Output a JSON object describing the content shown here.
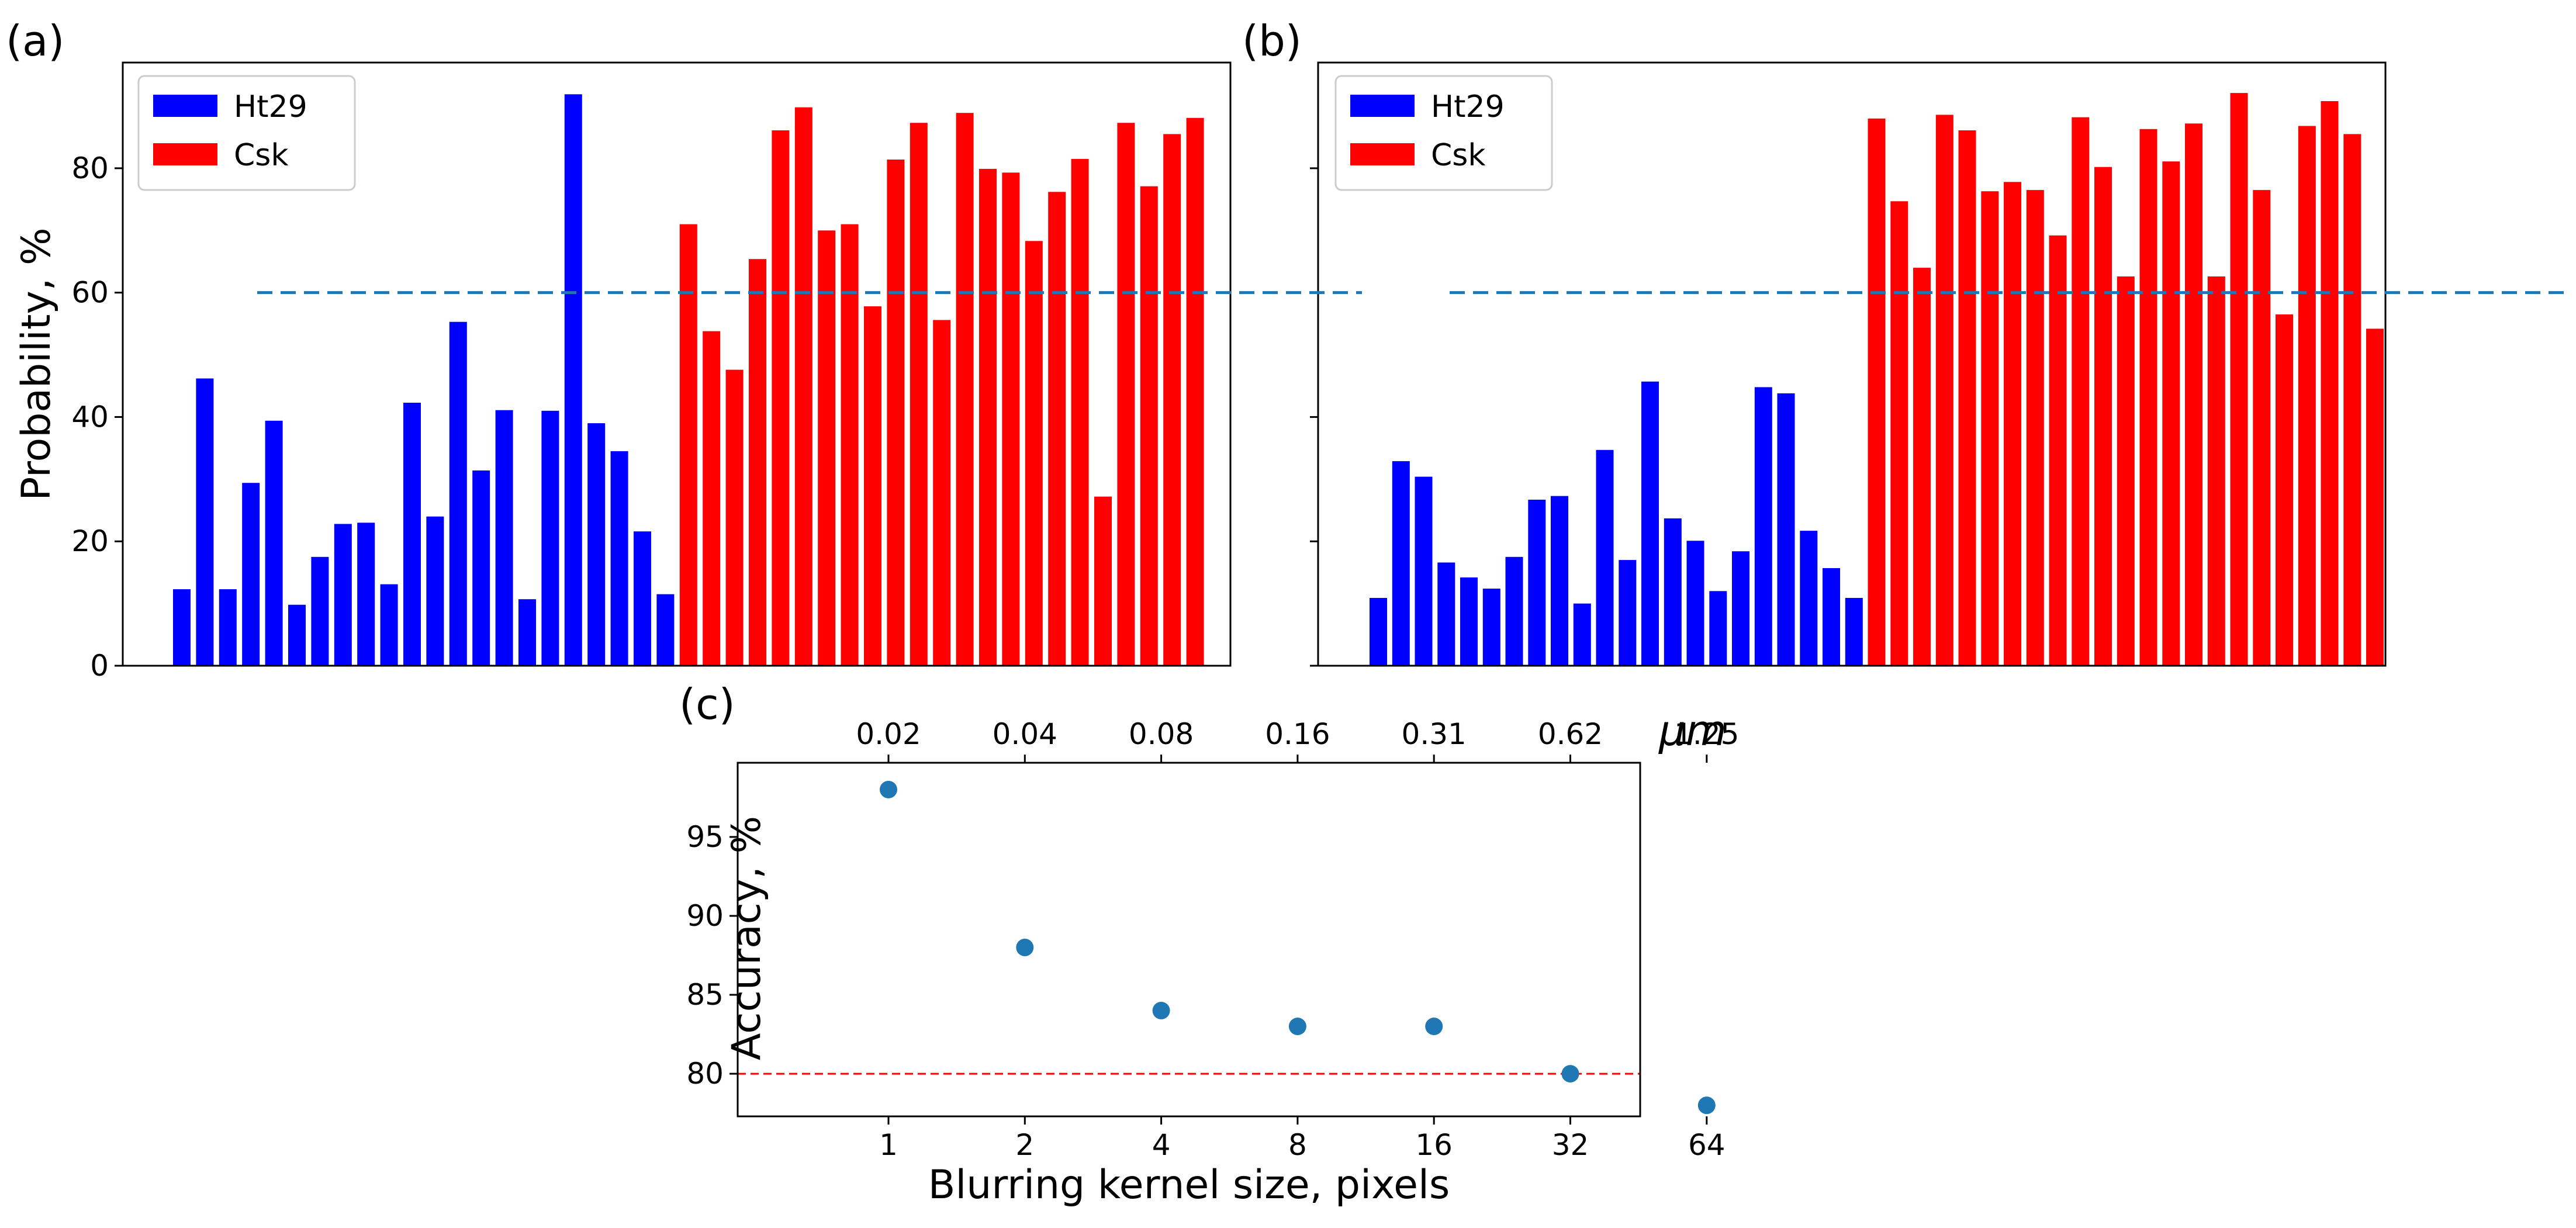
{
  "chart_data": [
    {
      "panel": "(a)",
      "type": "bar",
      "ylabel": "Probability, %",
      "xlabel": "",
      "ylim": [
        0,
        97
      ],
      "yticks": [
        0,
        20,
        40,
        60,
        80
      ],
      "threshold": 60,
      "threshold_color": "#1f77b4",
      "legend_position": "top-left",
      "series": [
        {
          "name": "Ht29",
          "color": "#0000ff",
          "values": [
            12.3,
            46.2,
            12.3,
            29.4,
            39.4,
            9.8,
            17.5,
            22.8,
            23.0,
            13.1,
            42.3,
            24.0,
            55.3,
            31.4,
            41.1,
            10.7,
            41.0,
            91.9,
            39.0,
            34.5,
            21.6,
            11.5
          ]
        },
        {
          "name": "Csk",
          "color": "#ff0000",
          "values": [
            71.0,
            53.8,
            47.6,
            65.4,
            86.1,
            89.8,
            70.0,
            71.0,
            57.8,
            81.4,
            87.3,
            55.6,
            88.9,
            79.9,
            79.3,
            68.3,
            76.2,
            81.5,
            27.2,
            87.3,
            77.1,
            85.5,
            88.1
          ]
        }
      ]
    },
    {
      "panel": "(b)",
      "type": "bar",
      "ylabel": "",
      "xlabel": "",
      "ylim": [
        0,
        97
      ],
      "yticks": [
        0,
        20,
        40,
        60,
        80
      ],
      "threshold": 60,
      "threshold_color": "#1f77b4",
      "legend_position": "top-left",
      "series": [
        {
          "name": "Ht29",
          "color": "#0000ff",
          "values": [
            10.9,
            32.9,
            30.4,
            16.6,
            14.2,
            12.4,
            17.5,
            26.7,
            27.3,
            10.0,
            34.7,
            17.0,
            45.7,
            23.7,
            20.1,
            12.0,
            18.4,
            44.8,
            43.8,
            21.7,
            15.7,
            10.9
          ]
        },
        {
          "name": "Csk",
          "color": "#ff0000",
          "values": [
            88.0,
            74.7,
            64.0,
            88.6,
            86.1,
            76.3,
            77.8,
            76.5,
            69.2,
            88.2,
            80.2,
            62.6,
            86.3,
            81.1,
            87.2,
            62.6,
            92.1,
            76.5,
            56.5,
            86.8,
            90.8,
            85.5,
            54.2
          ]
        }
      ]
    },
    {
      "panel": "(c)",
      "type": "scatter",
      "xlabel": "Blurring kernel size, pixels",
      "ylabel": "Accuracy, %",
      "x": [
        1,
        2,
        4,
        8,
        16,
        32,
        64
      ],
      "y": [
        98,
        88,
        84,
        83,
        83,
        80,
        78
      ],
      "xtick_labels": [
        "1",
        "2",
        "4",
        "8",
        "16",
        "32",
        "64"
      ],
      "top_xtick_labels": [
        "0.02",
        "0.04",
        "0.08",
        "0.16",
        "0.31",
        "0.62",
        "1.25"
      ],
      "top_axis_unit": "μm",
      "ylim": [
        77.3,
        99.7
      ],
      "yticks": [
        80,
        85,
        90,
        95
      ],
      "threshold": 80,
      "threshold_color": "#ff0000",
      "marker_color": "#1f77b4"
    }
  ]
}
